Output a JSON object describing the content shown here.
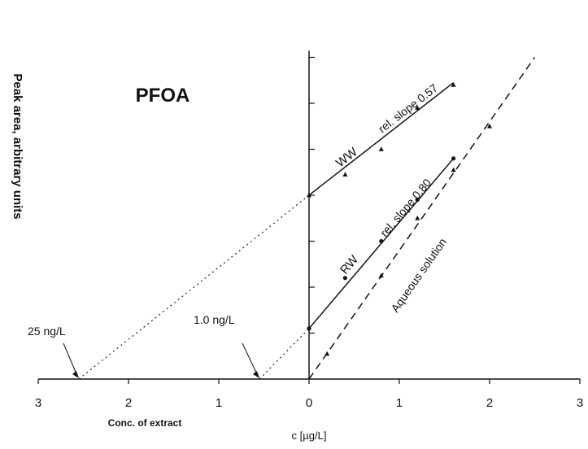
{
  "chart_data": {
    "type": "line",
    "title": "PFOA",
    "ylabel": "Peak area, arbitrary units",
    "xlabel_left": "Conc. of extract",
    "xlabel_right": "c [µg/L]",
    "xlim": [
      -3,
      3
    ],
    "ylim": [
      0,
      7
    ],
    "x_ticks": [
      -3,
      -2,
      -1,
      0,
      1,
      2,
      3
    ],
    "x_tick_labels": [
      "3",
      "2",
      "1",
      "0",
      "1",
      "2",
      "3"
    ],
    "y_ticks": [
      1,
      2,
      3,
      4,
      5,
      6,
      7
    ],
    "grid": false,
    "series": [
      {
        "name": "WW",
        "label": "WW",
        "slope_label": "rel. slope 0.57",
        "style": "solid",
        "marker": "triangle",
        "x": [
          0,
          0.4,
          0.8,
          1.2,
          1.6
        ],
        "y": [
          4.0,
          4.45,
          5.0,
          5.9,
          6.4
        ],
        "fit": {
          "x": [
            0,
            1.6
          ],
          "y": [
            4.0,
            6.45
          ]
        },
        "extrapolation": {
          "x": [
            -2.55,
            0
          ],
          "y": [
            0,
            4.0
          ]
        }
      },
      {
        "name": "RW",
        "label": "RW",
        "slope_label": "rel. slope 0.80",
        "style": "solid",
        "marker": "circle",
        "x": [
          0,
          0.4,
          0.8,
          1.2,
          1.6
        ],
        "y": [
          1.1,
          2.2,
          3.0,
          3.9,
          4.8
        ],
        "fit": {
          "x": [
            0,
            1.6
          ],
          "y": [
            1.1,
            4.8
          ]
        },
        "extrapolation": {
          "x": [
            -0.55,
            0
          ],
          "y": [
            0,
            1.1
          ]
        }
      },
      {
        "name": "Aqueous solution",
        "label": "Aqueous solution",
        "style": "dashed",
        "marker": "triangle",
        "x": [
          0.2,
          0.8,
          1.2,
          1.6,
          2.0
        ],
        "y": [
          0.55,
          2.25,
          3.5,
          4.55,
          5.5
        ],
        "fit": {
          "x": [
            0,
            2.5
          ],
          "y": [
            0,
            7.0
          ]
        }
      }
    ],
    "annotations": [
      {
        "text": "25 ng/L",
        "x": -2.55,
        "y": 0
      },
      {
        "text": "1.0 ng/L",
        "x": -0.55,
        "y": 0
      }
    ]
  }
}
